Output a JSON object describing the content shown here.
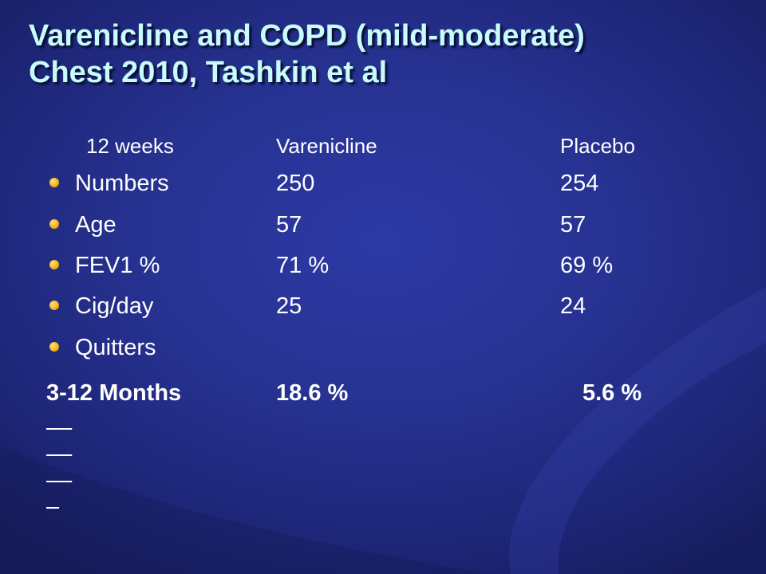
{
  "title": {
    "line1": "Varenicline and COPD (mild-moderate)",
    "line2": "Chest 2010, Tashkin et al"
  },
  "header": {
    "label": "12 weeks",
    "col1": "Varenicline",
    "col2": "Placebo"
  },
  "rows": [
    {
      "label": "Numbers",
      "varenicline": "250",
      "placebo": "254"
    },
    {
      "label": "Age",
      "varenicline": "57",
      "placebo": "57"
    },
    {
      "label": "FEV1 %",
      "varenicline": "71 %",
      "placebo": "69 %"
    },
    {
      "label": "Cig/day",
      "varenicline": "25",
      "placebo": "24"
    },
    {
      "label": "Quitters",
      "varenicline": "",
      "placebo": ""
    }
  ],
  "footer": {
    "label": "3-12 Months",
    "varenicline": "18.6 %",
    "placebo": "5.6 % "
  },
  "colors": {
    "title": "#c8fbfb",
    "text": "#ffffff",
    "bullet": "#f7b321",
    "background": "#26318f"
  }
}
